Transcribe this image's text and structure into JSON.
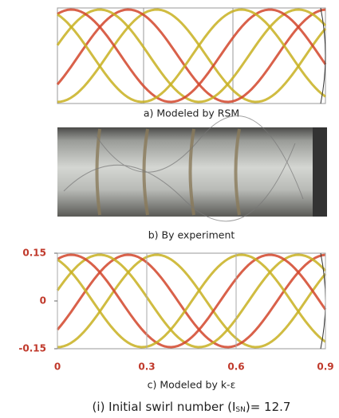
{
  "panels": [
    {
      "caption": "a)  Modeled by RSM"
    },
    {
      "caption": "b)  By experiment"
    },
    {
      "caption": "c)  Modeled by k-ε",
      "xlim": [
        0,
        0.9
      ],
      "ylim": [
        -0.15,
        0.15
      ],
      "xticks": [
        0,
        0.3,
        0.6,
        0.9
      ],
      "yticks": [
        0.15,
        0,
        -0.15
      ],
      "tick_color": "#c0392b"
    }
  ],
  "figure_caption": {
    "prefix": "(i)  Initial swirl number (I",
    "subscript": "SN",
    "suffix": ")= 12.7"
  }
}
